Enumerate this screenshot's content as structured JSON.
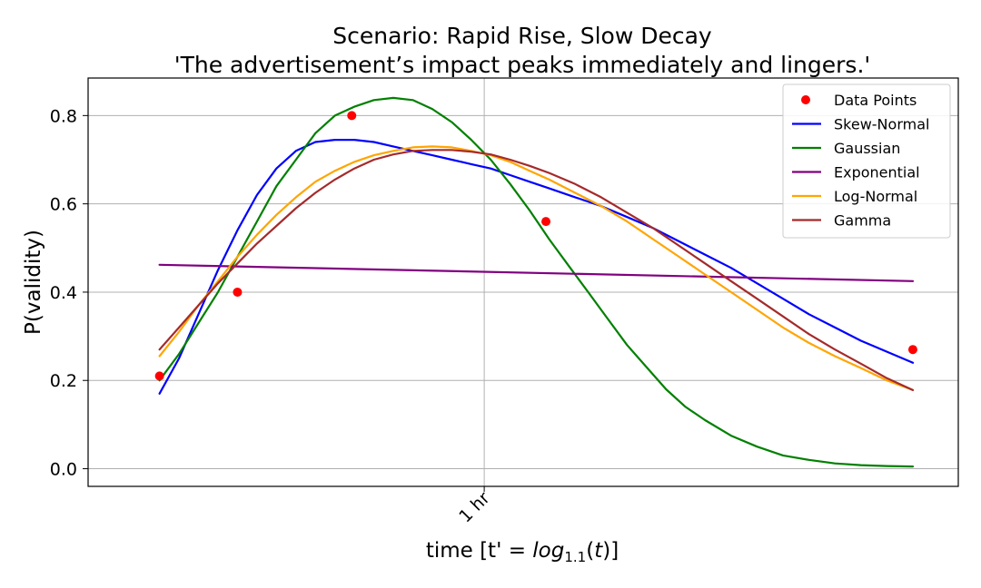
{
  "chart_data": {
    "type": "line",
    "title": "Scenario: Rapid Rise, Slow Decay",
    "subtitle": "'The advertisement’s impact peaks immediately and lingers.'",
    "xlabel_prefix": "time [t' = ",
    "xlabel_func": "log",
    "xlabel_sub": "1.1",
    "xlabel_arg_open": "(",
    "xlabel_arg": "t",
    "xlabel_suffix": ")]",
    "ylabel": "P(validity)",
    "xlim": [
      1,
      135
    ],
    "ylim": [
      -0.04,
      0.885
    ],
    "grid": true,
    "legend_position": "top-right",
    "x_ticks": [
      {
        "value": 62,
        "label": "1 hr"
      }
    ],
    "y_ticks": [
      {
        "value": 0.0,
        "label": "0.0"
      },
      {
        "value": 0.2,
        "label": "0.2"
      },
      {
        "value": 0.4,
        "label": "0.4"
      },
      {
        "value": 0.6,
        "label": "0.6"
      },
      {
        "value": 0.8,
        "label": "0.8"
      }
    ],
    "points": {
      "name": "Data Points",
      "color": "#ff0000",
      "x": [
        12,
        24,
        41.6,
        71.5,
        128
      ],
      "y": [
        0.21,
        0.4,
        0.8,
        0.56,
        0.27
      ]
    },
    "series": [
      {
        "name": "Skew-Normal",
        "color": "#0000ff",
        "x": [
          12,
          15,
          18,
          21,
          24,
          27,
          30,
          33,
          36,
          39,
          42,
          45,
          48,
          51,
          54,
          57,
          60,
          63,
          66,
          69,
          72,
          76,
          80,
          84,
          88,
          92,
          96,
          100,
          104,
          108,
          112,
          116,
          120,
          124,
          128
        ],
        "y": [
          0.17,
          0.25,
          0.35,
          0.45,
          0.54,
          0.62,
          0.68,
          0.72,
          0.74,
          0.745,
          0.745,
          0.74,
          0.73,
          0.72,
          0.71,
          0.7,
          0.69,
          0.68,
          0.665,
          0.65,
          0.635,
          0.615,
          0.595,
          0.57,
          0.545,
          0.515,
          0.485,
          0.455,
          0.42,
          0.385,
          0.35,
          0.32,
          0.29,
          0.265,
          0.24
        ]
      },
      {
        "name": "Gaussian",
        "color": "#008000",
        "x": [
          12,
          15,
          18,
          21,
          24,
          27,
          30,
          33,
          36,
          39,
          42,
          45,
          48,
          51,
          54,
          57,
          60,
          63,
          66,
          69,
          72,
          75,
          78,
          81,
          84,
          87,
          90,
          93,
          96,
          100,
          104,
          108,
          112,
          116,
          120,
          124,
          128
        ],
        "y": [
          0.2,
          0.26,
          0.33,
          0.4,
          0.48,
          0.56,
          0.64,
          0.7,
          0.76,
          0.8,
          0.82,
          0.835,
          0.84,
          0.835,
          0.815,
          0.785,
          0.745,
          0.7,
          0.645,
          0.585,
          0.52,
          0.46,
          0.4,
          0.34,
          0.28,
          0.23,
          0.18,
          0.14,
          0.11,
          0.075,
          0.05,
          0.03,
          0.02,
          0.012,
          0.008,
          0.006,
          0.005
        ]
      },
      {
        "name": "Exponential",
        "color": "#800080",
        "x": [
          12,
          128
        ],
        "y": [
          0.462,
          0.425
        ]
      },
      {
        "name": "Log-Normal",
        "color": "#ffa500",
        "x": [
          12,
          15,
          18,
          21,
          24,
          27,
          30,
          33,
          36,
          39,
          42,
          45,
          48,
          51,
          54,
          57,
          60,
          63,
          66,
          69,
          72,
          76,
          80,
          84,
          88,
          92,
          96,
          100,
          104,
          108,
          112,
          116,
          120,
          124,
          128
        ],
        "y": [
          0.255,
          0.31,
          0.37,
          0.425,
          0.48,
          0.53,
          0.575,
          0.615,
          0.65,
          0.675,
          0.695,
          0.71,
          0.72,
          0.728,
          0.73,
          0.728,
          0.72,
          0.71,
          0.695,
          0.675,
          0.655,
          0.625,
          0.595,
          0.56,
          0.52,
          0.48,
          0.44,
          0.4,
          0.36,
          0.32,
          0.285,
          0.255,
          0.228,
          0.2,
          0.178
        ]
      },
      {
        "name": "Gamma",
        "color": "#a52a2a",
        "x": [
          12,
          15,
          18,
          21,
          24,
          27,
          30,
          33,
          36,
          39,
          42,
          45,
          48,
          51,
          54,
          57,
          60,
          63,
          66,
          69,
          72,
          76,
          80,
          84,
          88,
          92,
          96,
          100,
          104,
          108,
          112,
          116,
          120,
          124,
          128
        ],
        "y": [
          0.27,
          0.32,
          0.37,
          0.42,
          0.465,
          0.51,
          0.55,
          0.59,
          0.625,
          0.655,
          0.68,
          0.7,
          0.712,
          0.72,
          0.722,
          0.722,
          0.718,
          0.712,
          0.7,
          0.686,
          0.67,
          0.645,
          0.615,
          0.58,
          0.545,
          0.505,
          0.465,
          0.425,
          0.385,
          0.345,
          0.305,
          0.27,
          0.238,
          0.205,
          0.178
        ]
      }
    ]
  }
}
